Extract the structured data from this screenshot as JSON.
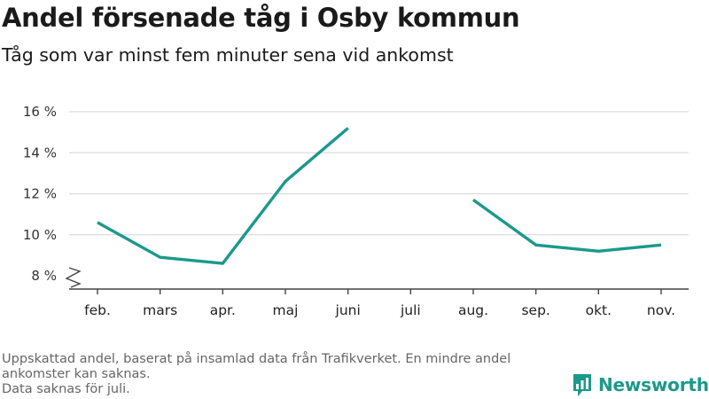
{
  "title": "Andel försenade tåg i Osby kommun",
  "subtitle": "Tåg som var minst fem minuter sena vid ankomst",
  "footer": {
    "line1": "Uppskattad andel, baserat på insamlad data från Trafikverket. En mindre andel",
    "line2": "ankomster kan saknas.",
    "line3": "Data saknas för juli."
  },
  "brand": {
    "name": "Newsworthy",
    "icon": "newsworthy-logo-icon",
    "color": "#1b998b"
  },
  "chart_data": {
    "type": "line",
    "categories": [
      "feb.",
      "mars",
      "apr.",
      "maj",
      "juni",
      "juli",
      "aug.",
      "sep.",
      "okt.",
      "nov."
    ],
    "series": [
      {
        "values": [
          10.6,
          8.9,
          8.6,
          12.6,
          15.2,
          null,
          11.7,
          9.5,
          9.2,
          9.5
        ],
        "color": "#1b998b"
      }
    ],
    "ylim": [
      8,
      16
    ],
    "yticks": [
      8,
      10,
      12,
      14,
      16
    ],
    "ytick_labels": [
      "8 %",
      "10 %",
      "12 %",
      "14 %",
      "16 %"
    ],
    "grid": true,
    "y_axis_break": true
  }
}
